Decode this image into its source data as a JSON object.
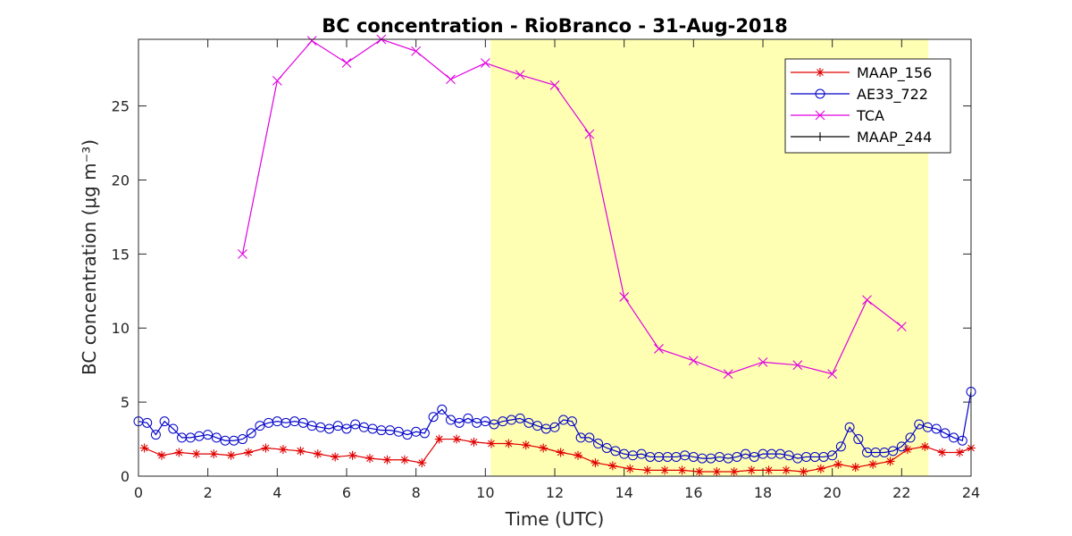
{
  "chart_data": {
    "type": "line",
    "title": "BC concentration  - RioBranco - 31-Aug-2018",
    "xlabel": "Time (UTC)",
    "ylabel": "BC concentration (μg m⁻³)",
    "xlim": [
      0,
      24
    ],
    "xticks": [
      0,
      2,
      4,
      6,
      8,
      10,
      12,
      14,
      16,
      18,
      20,
      22,
      24
    ],
    "ylim": [
      0,
      29.5
    ],
    "yticks": [
      0,
      5,
      10,
      15,
      20,
      25
    ],
    "shaded_region": {
      "x": [
        10.15,
        22.77
      ],
      "color": "#ffffb3"
    },
    "legend": "northeast",
    "series": [
      {
        "name": "MAAP_156",
        "color": "#e00000",
        "marker": "star",
        "x": [
          0.17,
          0.67,
          1.17,
          1.67,
          2.17,
          2.67,
          3.17,
          3.67,
          4.17,
          4.67,
          5.17,
          5.67,
          6.17,
          6.67,
          7.17,
          7.67,
          8.17,
          8.67,
          9.17,
          9.67,
          10.17,
          10.67,
          11.17,
          11.67,
          12.17,
          12.67,
          13.17,
          13.67,
          14.17,
          14.67,
          15.17,
          15.67,
          16.17,
          16.67,
          17.17,
          17.67,
          18.17,
          18.67,
          19.17,
          19.67,
          20.17,
          20.67,
          21.17,
          21.67,
          22.17,
          22.67,
          23.17,
          23.67,
          24
        ],
        "values": [
          1.9,
          1.4,
          1.6,
          1.5,
          1.5,
          1.4,
          1.6,
          1.9,
          1.8,
          1.7,
          1.5,
          1.3,
          1.4,
          1.2,
          1.1,
          1.1,
          0.9,
          2.5,
          2.5,
          2.3,
          2.2,
          2.2,
          2.1,
          1.9,
          1.6,
          1.4,
          0.9,
          0.7,
          0.5,
          0.4,
          0.4,
          0.4,
          0.3,
          0.3,
          0.3,
          0.4,
          0.4,
          0.4,
          0.3,
          0.5,
          0.8,
          0.6,
          0.8,
          1.0,
          1.8,
          2.0,
          1.6,
          1.6,
          1.9
        ]
      },
      {
        "name": "AE33_722",
        "color": "#0000c8",
        "marker": "circle",
        "x": [
          0,
          0.25,
          0.5,
          0.75,
          1,
          1.25,
          1.5,
          1.75,
          2,
          2.25,
          2.5,
          2.75,
          3,
          3.25,
          3.5,
          3.75,
          4,
          4.25,
          4.5,
          4.75,
          5,
          5.25,
          5.5,
          5.75,
          6,
          6.25,
          6.5,
          6.75,
          7,
          7.25,
          7.5,
          7.75,
          8,
          8.25,
          8.5,
          8.75,
          9,
          9.25,
          9.5,
          9.75,
          10,
          10.25,
          10.5,
          10.75,
          11,
          11.25,
          11.5,
          11.75,
          12,
          12.25,
          12.5,
          12.75,
          13,
          13.25,
          13.5,
          13.75,
          14,
          14.25,
          14.5,
          14.75,
          15,
          15.25,
          15.5,
          15.75,
          16,
          16.25,
          16.5,
          16.75,
          17,
          17.25,
          17.5,
          17.75,
          18,
          18.25,
          18.5,
          18.75,
          19,
          19.25,
          19.5,
          19.75,
          20,
          20.25,
          20.5,
          20.75,
          21,
          21.25,
          21.5,
          21.75,
          22,
          22.25,
          22.5,
          22.75,
          23,
          23.25,
          23.5,
          23.75,
          24
        ],
        "values": [
          3.7,
          3.6,
          2.8,
          3.7,
          3.2,
          2.6,
          2.6,
          2.7,
          2.8,
          2.6,
          2.4,
          2.4,
          2.5,
          2.9,
          3.4,
          3.6,
          3.7,
          3.6,
          3.7,
          3.6,
          3.4,
          3.3,
          3.2,
          3.4,
          3.2,
          3.5,
          3.3,
          3.2,
          3.1,
          3.1,
          3.0,
          2.8,
          3.0,
          2.9,
          4.0,
          4.5,
          3.8,
          3.6,
          3.9,
          3.6,
          3.7,
          3.5,
          3.7,
          3.8,
          3.9,
          3.6,
          3.4,
          3.2,
          3.3,
          3.8,
          3.7,
          2.6,
          2.6,
          2.2,
          1.9,
          1.7,
          1.5,
          1.4,
          1.5,
          1.3,
          1.3,
          1.3,
          1.3,
          1.4,
          1.3,
          1.2,
          1.2,
          1.3,
          1.2,
          1.3,
          1.5,
          1.3,
          1.5,
          1.5,
          1.5,
          1.4,
          1.2,
          1.3,
          1.3,
          1.3,
          1.4,
          2.0,
          3.3,
          2.5,
          1.6,
          1.6,
          1.6,
          1.7,
          2.0,
          2.6,
          3.5,
          3.3,
          3.2,
          2.9,
          2.6,
          2.4,
          5.7
        ]
      },
      {
        "name": "TCA",
        "color": "#e000e0",
        "marker": "x",
        "x": [
          3,
          4,
          5,
          6,
          7,
          8,
          9,
          10,
          11,
          12,
          13,
          14,
          15,
          16,
          17,
          18,
          19,
          20,
          21,
          22
        ],
        "values": [
          15.0,
          26.7,
          29.4,
          27.9,
          29.5,
          28.7,
          26.8,
          27.9,
          27.1,
          26.4,
          23.1,
          12.1,
          8.6,
          7.8,
          6.9,
          7.7,
          7.5,
          6.9,
          11.9,
          10.1
        ]
      },
      {
        "name": "MAAP_244",
        "color": "#000000",
        "marker": "plus",
        "x": [],
        "values": []
      }
    ]
  }
}
